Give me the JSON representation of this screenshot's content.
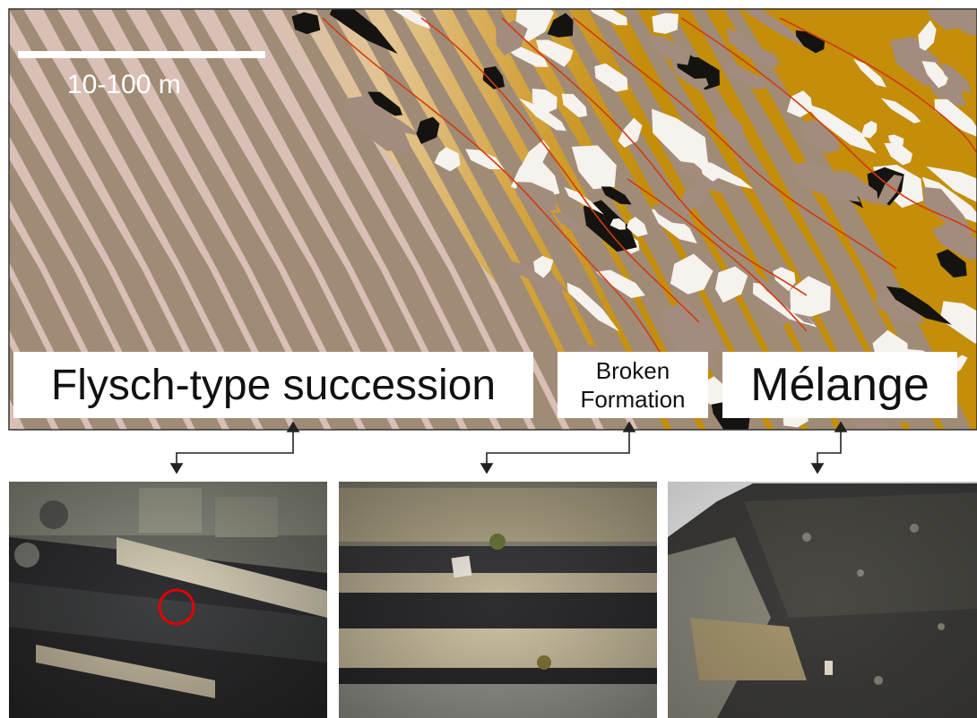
{
  "scale_bar": {
    "label": "10-100 m"
  },
  "units": [
    {
      "id": "flysch",
      "label": "Flysch-type succession"
    },
    {
      "id": "broken",
      "label_line1": "Broken",
      "label_line2": "Formation"
    },
    {
      "id": "melange",
      "label": "Mélange"
    }
  ],
  "colors": {
    "flysch_background": "#d9bfb6",
    "flysch_beds": "#a08c76",
    "melange_matrix": "#c48d0a",
    "block_light": "#f6f2ee",
    "block_grey": "#a38c7e",
    "block_dark": "#15130f",
    "shear_lines": "#d33a0c",
    "highlight_circle": "#e00000"
  },
  "photos": [
    {
      "id": "photo-flysch",
      "caption_ref": "flysch"
    },
    {
      "id": "photo-broken-formation",
      "caption_ref": "broken"
    },
    {
      "id": "photo-melange",
      "caption_ref": "melange"
    }
  ]
}
